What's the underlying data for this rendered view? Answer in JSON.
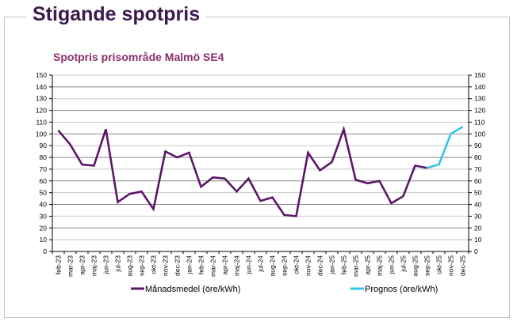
{
  "page": {
    "title": "Stigande spotpris"
  },
  "chart_data": {
    "type": "line",
    "title": "Spotpris prisområde Malmö SE4",
    "xlabel": "",
    "ylabel": "",
    "ylim": [
      0,
      150
    ],
    "yticks": [
      0,
      10,
      20,
      30,
      40,
      50,
      60,
      70,
      80,
      90,
      100,
      110,
      120,
      130,
      140,
      150
    ],
    "secondary_yticks": [
      0,
      10,
      20,
      30,
      40,
      50,
      60,
      70,
      80,
      90,
      100,
      110,
      120,
      130,
      140,
      150
    ],
    "grid": true,
    "legend_position": "bottom",
    "categories": [
      "feb-23",
      "mar-23",
      "apr-23",
      "maj-23",
      "jun-23",
      "jul-23",
      "aug-23",
      "sep-23",
      "okt-23",
      "nov-23",
      "dec-23",
      "jan-24",
      "feb-24",
      "mar-24",
      "apr-24",
      "maj-24",
      "jun-24",
      "jul-24",
      "aug-24",
      "sep-24",
      "okt-24",
      "nov-24",
      "dec-24",
      "jan-25",
      "feb-25",
      "mar-25",
      "apr-25",
      "maj-25",
      "jun-25",
      "jul-25",
      "aug-25",
      "sep-25",
      "okt-25",
      "nov-25",
      "dec-25"
    ],
    "series": [
      {
        "name": "Månadsmedel (öre/kWh)",
        "color": "#5c1768",
        "start_index": 0,
        "values": [
          103,
          91,
          74,
          73,
          104,
          42,
          49,
          51,
          36,
          85,
          80,
          84,
          55,
          63,
          62,
          51,
          62,
          43,
          46,
          31,
          30,
          84,
          69,
          76,
          104,
          61,
          58,
          60,
          41,
          47,
          73,
          71
        ]
      },
      {
        "name": "Prognos (öre/kWh)",
        "color": "#33c6ea",
        "start_index": 31,
        "values": [
          71,
          74,
          100,
          106
        ]
      }
    ]
  }
}
